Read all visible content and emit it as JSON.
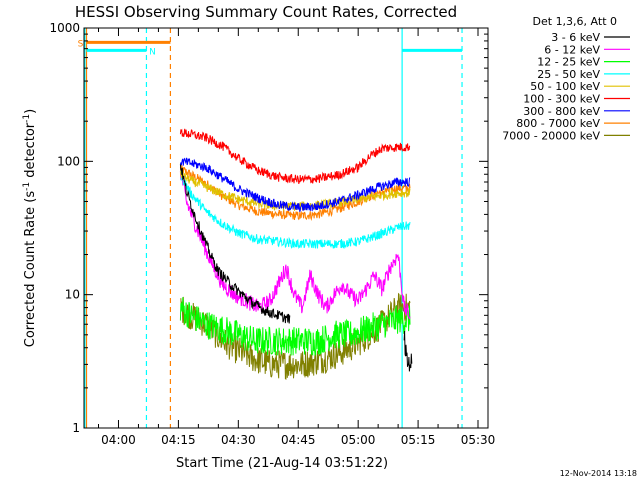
{
  "chart_data": {
    "type": "line",
    "title": "HESSI Observing Summary Count Rates, Corrected",
    "xlabel": "Start Time (21-Aug-14 03:51:22)",
    "ylabel": "Corrected Count Rate (s",
    "ylabel_sup1": "-1",
    "ylabel_mid": " detector",
    "ylabel_sup2": "-1",
    "ylabel_end": ")",
    "footer": "12-Nov-2014 13:18",
    "legend_title": "Det 1,3,6, Att 0",
    "yscale": "log",
    "ylim": [
      1,
      1000
    ],
    "xlim_minutes": [
      231.37,
      332.5
    ],
    "x_ticks": [
      {
        "label": "04:00",
        "m": 240
      },
      {
        "label": "04:15",
        "m": 255
      },
      {
        "label": "04:30",
        "m": 270
      },
      {
        "label": "04:45",
        "m": 285
      },
      {
        "label": "05:00",
        "m": 300
      },
      {
        "label": "05:15",
        "m": 315
      },
      {
        "label": "05:30",
        "m": 330
      }
    ],
    "y_ticks": [
      {
        "label": "1",
        "v": 1
      },
      {
        "label": "10",
        "v": 10
      },
      {
        "label": "100",
        "v": 100
      },
      {
        "label": "1000",
        "v": 1000
      }
    ],
    "flags": [
      {
        "name": "S",
        "color": "#ff8000",
        "level": 780,
        "start_m": 232,
        "end_m": 253,
        "label_m": 230.5
      },
      {
        "name": "N",
        "color": "#00ffff",
        "level": 680,
        "start_m": 232,
        "end_m": 247,
        "label_m": 248.5
      },
      {
        "name": "",
        "color": "#00ffff",
        "level": 680,
        "start_m": 311,
        "end_m": 326,
        "label_m": 0
      }
    ],
    "vlines": [
      {
        "m": 232.0,
        "color": "#ff8000",
        "style": "solid"
      },
      {
        "m": 253.0,
        "color": "#ff8000",
        "style": "dashed"
      },
      {
        "m": 231.6,
        "color": "#00ffff",
        "style": "solid"
      },
      {
        "m": 247.0,
        "color": "#00ffff",
        "style": "dashed"
      },
      {
        "m": 311.0,
        "color": "#00ffff",
        "style": "solid"
      },
      {
        "m": 326.0,
        "color": "#00ffff",
        "style": "dashed"
      }
    ],
    "series": [
      {
        "name": "3 - 6 keV",
        "color": "#000000",
        "x": [],
        "y": []
      },
      {
        "name": "6 - 12 keV",
        "color": "#ff00ff",
        "x": [
          255.5,
          257,
          259,
          261,
          263,
          266,
          269,
          272,
          275,
          278,
          280,
          282,
          284,
          286,
          288,
          290,
          292,
          294,
          296,
          298,
          300,
          302,
          304,
          306,
          308,
          310,
          311.5,
          313
        ],
        "y": [
          85,
          50,
          35,
          25,
          18,
          12,
          10,
          9,
          8,
          9,
          12,
          16,
          10,
          8,
          14,
          10,
          8,
          10,
          12,
          10,
          9,
          11,
          14,
          11,
          16,
          20,
          8,
          7
        ]
      },
      {
        "name": "12 - 25 keV",
        "color": "#00ff00",
        "x": [
          255.5,
          258,
          262,
          266,
          270,
          274,
          278,
          282,
          286,
          290,
          294,
          298,
          302,
          306,
          310,
          313
        ],
        "y": [
          8,
          7,
          6,
          5.5,
          5,
          4.5,
          4.5,
          4.5,
          4.5,
          4.5,
          5,
          5,
          5.5,
          6,
          6.5,
          6.5
        ]
      },
      {
        "name": "25 - 50 keV",
        "color": "#00ffff",
        "x": [
          255.5,
          258,
          262,
          266,
          270,
          275,
          280,
          285,
          290,
          295,
          300,
          305,
          310,
          313
        ],
        "y": [
          80,
          58,
          42,
          34,
          29,
          26,
          25,
          24,
          24,
          24,
          25,
          28,
          32,
          33
        ]
      },
      {
        "name": "50 - 100 keV",
        "color": "#e0c000",
        "x": [
          255.5,
          258,
          262,
          266,
          270,
          275,
          280,
          285,
          290,
          295,
          300,
          305,
          310,
          313
        ],
        "y": [
          80,
          72,
          64,
          57,
          52,
          48,
          46,
          46,
          47,
          49,
          52,
          55,
          58,
          58
        ]
      },
      {
        "name": "100 - 300 keV",
        "color": "#ff0000",
        "x": [
          255.5,
          258,
          262,
          266,
          270,
          275,
          280,
          285,
          290,
          295,
          300,
          303,
          306,
          310,
          313
        ],
        "y": [
          165,
          160,
          150,
          130,
          105,
          85,
          76,
          73,
          74,
          79,
          90,
          110,
          125,
          128,
          128
        ]
      },
      {
        "name": "300 - 800 keV",
        "color": "#0000ff",
        "x": [
          255.5,
          258,
          262,
          266,
          270,
          275,
          280,
          285,
          290,
          295,
          300,
          305,
          310,
          313
        ],
        "y": [
          100,
          97,
          90,
          75,
          62,
          53,
          47,
          45,
          46,
          50,
          56,
          64,
          70,
          70
        ]
      },
      {
        "name": "800 - 7000 keV",
        "color": "#ff8000",
        "x": [
          255.5,
          258,
          262,
          266,
          270,
          275,
          280,
          285,
          290,
          295,
          300,
          305,
          310,
          313
        ],
        "y": [
          88,
          80,
          68,
          55,
          47,
          42,
          40,
          39,
          40,
          44,
          50,
          58,
          63,
          63
        ]
      },
      {
        "name": "7000 - 20000 keV",
        "color": "#808000",
        "x": [
          255.5,
          258,
          262,
          266,
          270,
          274,
          278,
          282,
          286,
          290,
          294,
          298,
          302,
          306,
          310,
          313
        ],
        "y": [
          8,
          7,
          6,
          4.5,
          3.8,
          3.3,
          3,
          3,
          3,
          3.2,
          3.5,
          4,
          4.8,
          6,
          8,
          8
        ]
      }
    ],
    "black_curve": {
      "x": [
        255.5,
        257,
        259,
        261,
        263,
        265,
        268,
        271,
        274,
        277,
        280,
        283
      ],
      "y": [
        95,
        60,
        40,
        28,
        20,
        15,
        12,
        10,
        8.5,
        7.5,
        7,
        6.5
      ]
    },
    "black_tail": {
      "x": [
        311.5,
        312,
        312.5,
        313,
        313.5
      ],
      "y": [
        5,
        3.5,
        3,
        3.2,
        3
      ]
    }
  }
}
